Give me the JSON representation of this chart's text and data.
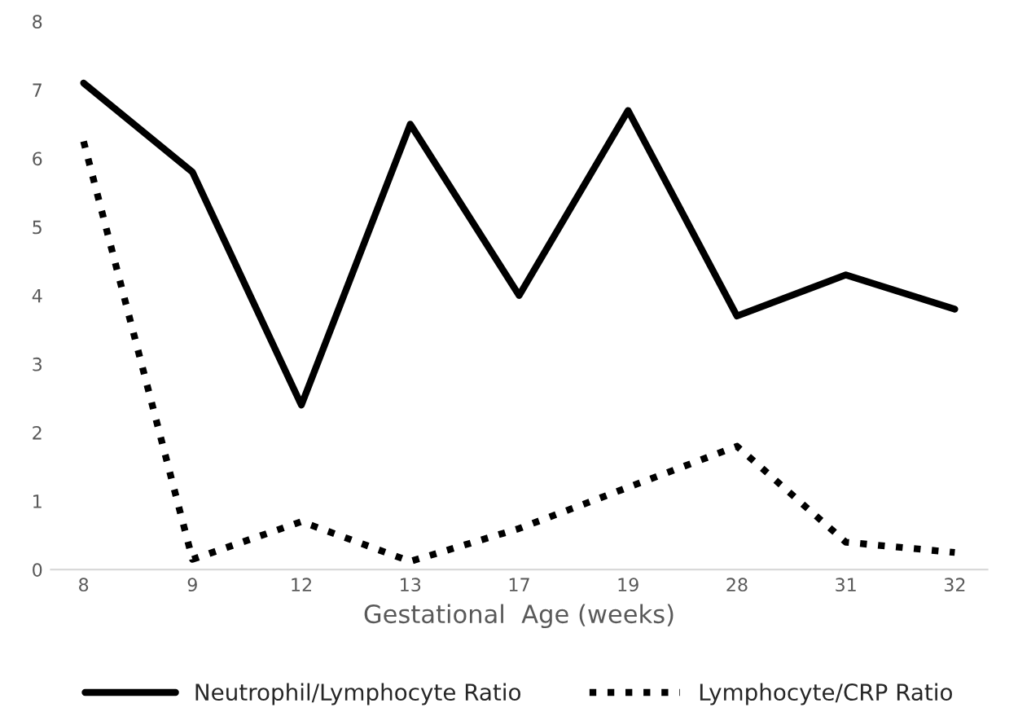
{
  "chart_data": {
    "type": "line",
    "xlabel": "Gestational  Age (weeks)",
    "categories": [
      "8",
      "9",
      "12",
      "13",
      "17",
      "19",
      "28",
      "31",
      "32"
    ],
    "series": [
      {
        "name": "Neutrophil/Lymphocyte Ratio",
        "color": "#000000",
        "line_style": "solid",
        "values": [
          7.1,
          5.8,
          2.4,
          6.5,
          4.0,
          6.7,
          3.7,
          4.3,
          3.8
        ]
      },
      {
        "name": "Lymphocyte/CRP Ratio",
        "color": "#000000",
        "line_style": "dotted",
        "values": [
          6.25,
          0.15,
          0.7,
          0.12,
          0.6,
          1.2,
          1.8,
          0.4,
          0.25
        ]
      }
    ],
    "ylim": [
      0,
      8
    ],
    "yticks": [
      0,
      1,
      2,
      3,
      4,
      5,
      6,
      7,
      8
    ],
    "grid": false,
    "legend": "bottom",
    "marker": "none"
  }
}
